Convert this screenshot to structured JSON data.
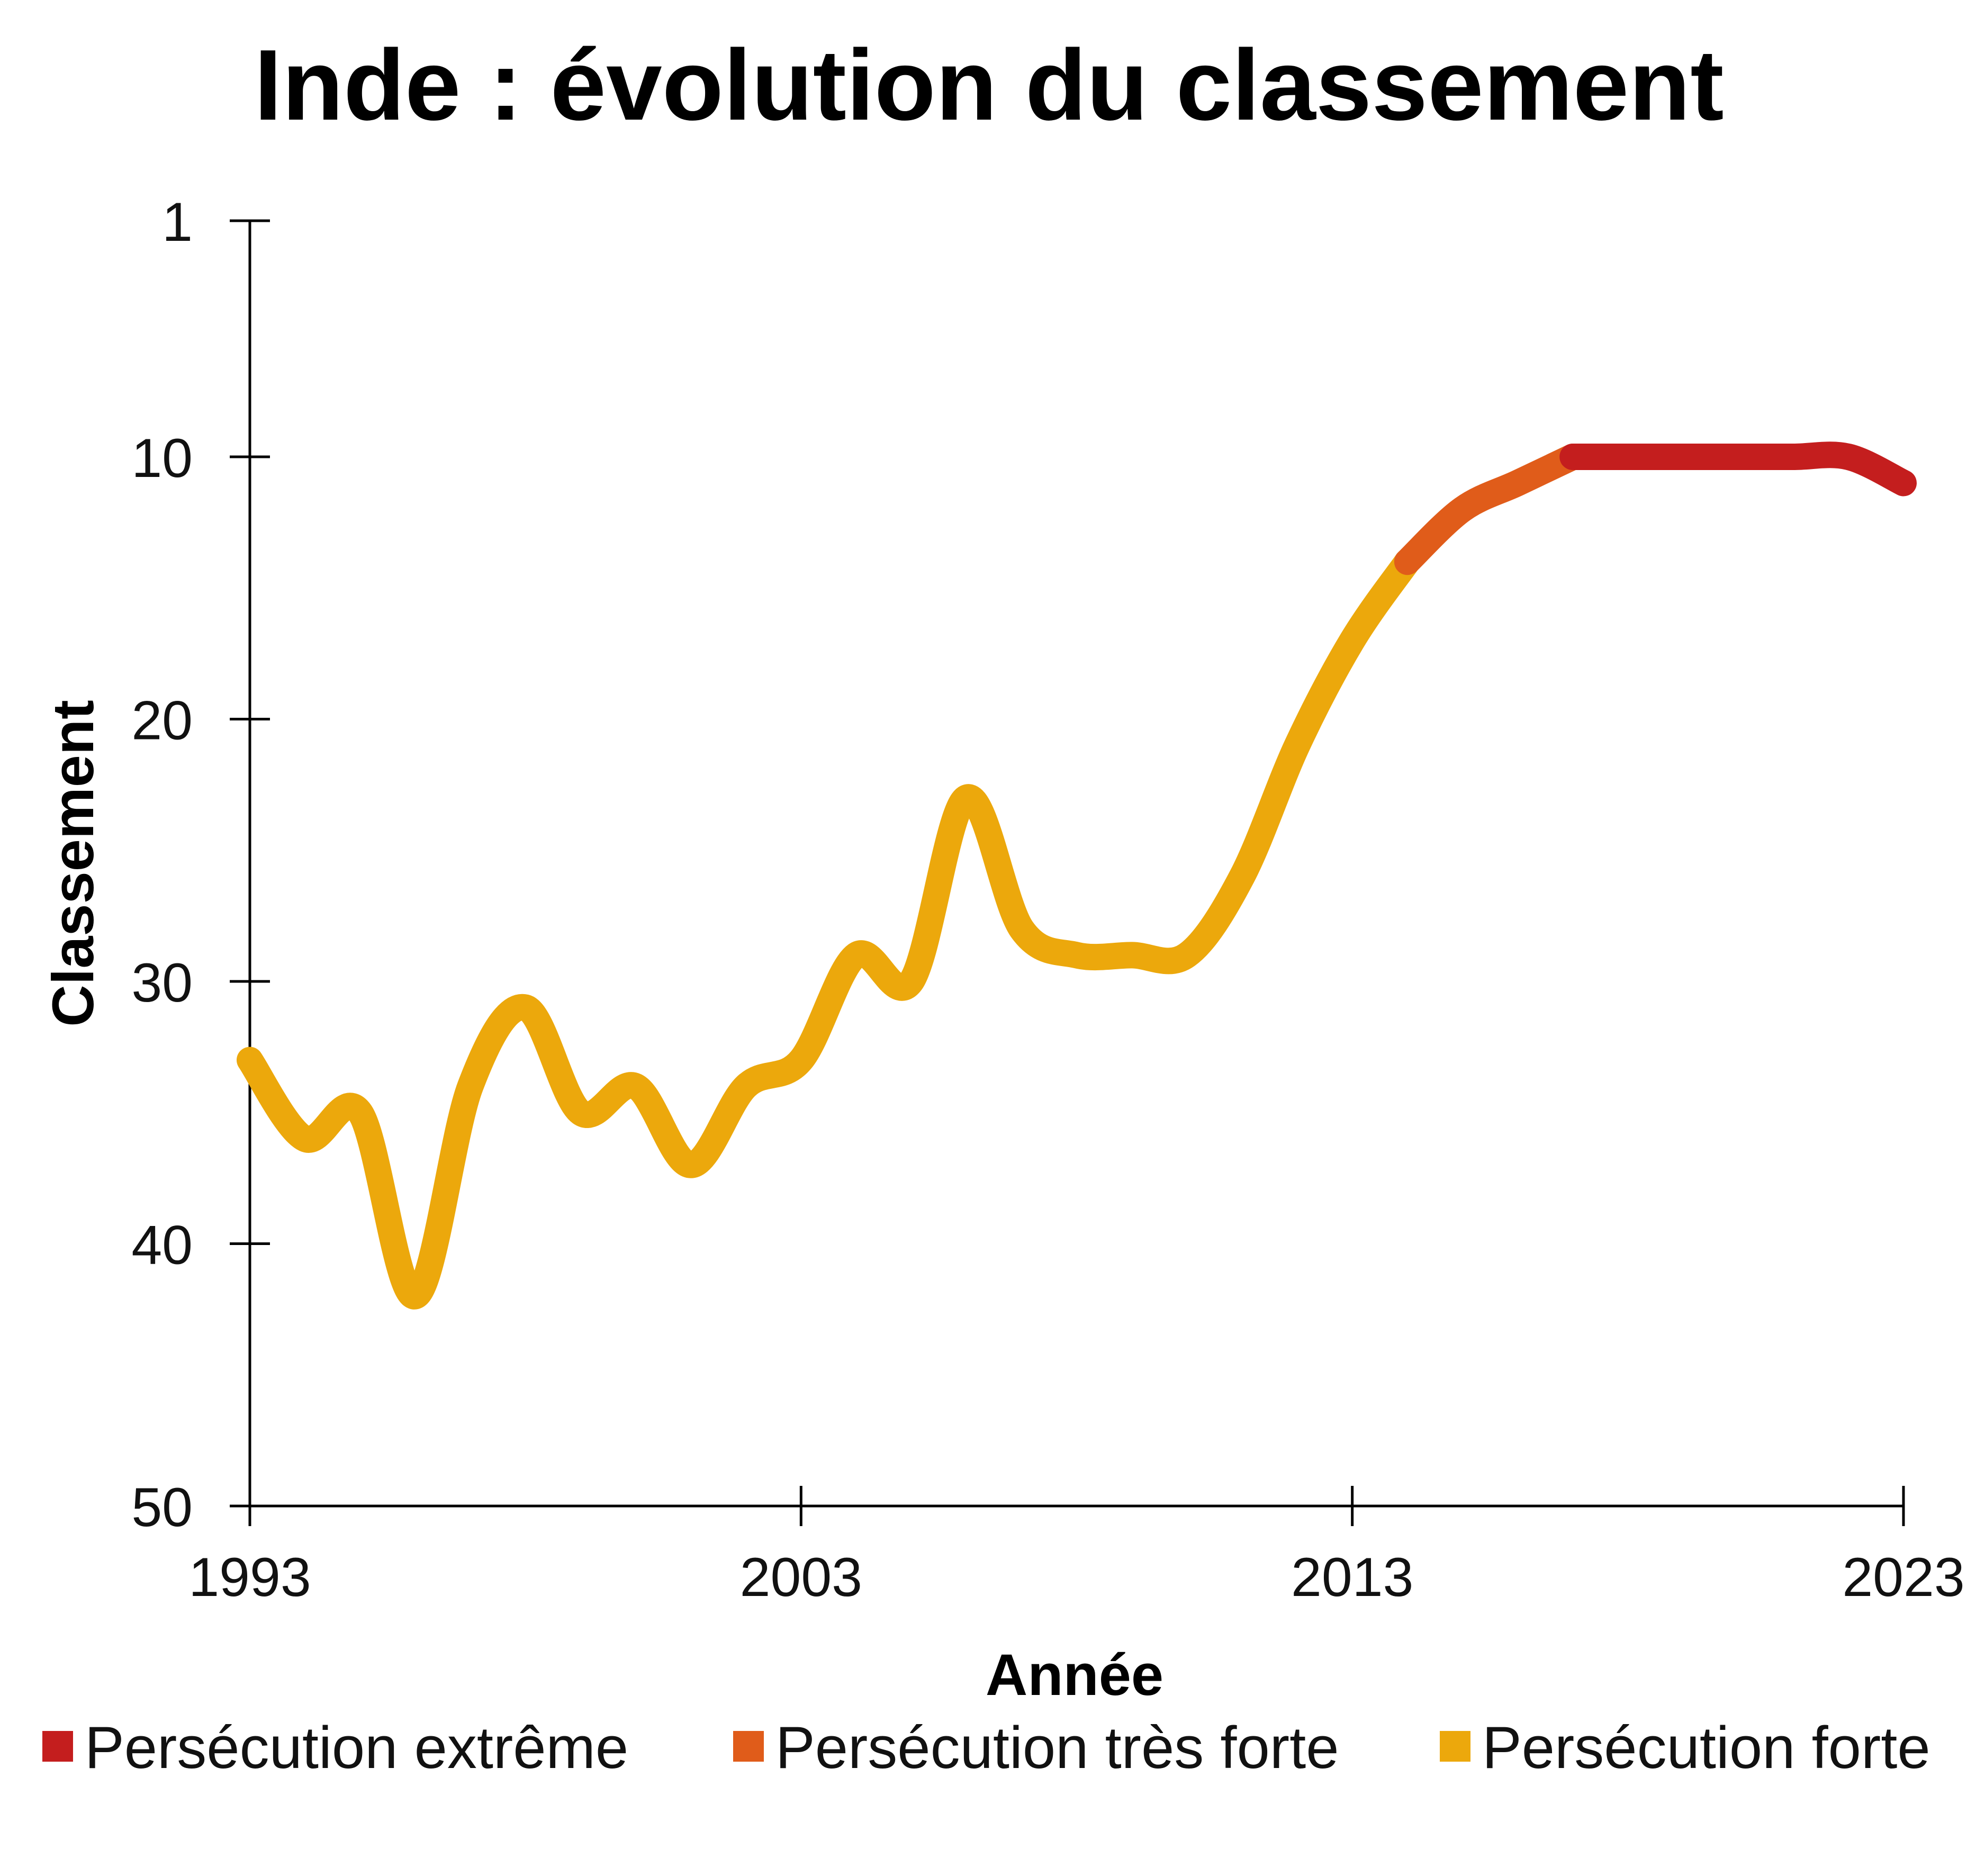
{
  "chart_data": {
    "type": "line",
    "title": "Inde : évolution du classement",
    "xlabel": "Année",
    "ylabel": "Classement",
    "xlim": [
      1993,
      2023
    ],
    "ylim": [
      1,
      50
    ],
    "y_inverted": true,
    "x_ticks": [
      "1993",
      "2003",
      "2013",
      "2023"
    ],
    "y_ticks": [
      "1",
      "10",
      "20",
      "30",
      "40",
      "50"
    ],
    "grid": false,
    "legend_position": "bottom",
    "x": [
      1993,
      1994,
      1995,
      1996,
      1997,
      1998,
      1999,
      2000,
      2001,
      2002,
      2003,
      2004,
      2005,
      2006,
      2007,
      2008,
      2009,
      2010,
      2011,
      2012,
      2013,
      2014,
      2015,
      2016,
      2017,
      2018,
      2019,
      2020,
      2021,
      2022,
      2023
    ],
    "values": [
      33,
      36,
      35,
      42,
      34,
      31,
      35,
      34,
      37,
      34,
      33,
      29,
      30,
      23,
      28,
      29,
      29,
      29,
      26,
      21,
      17,
      14,
      12,
      11,
      10,
      10,
      10,
      10,
      10,
      10,
      11
    ],
    "series": [
      {
        "name": "Persécution extrême",
        "color": "#c41e1e",
        "x_range": [
          2017,
          2023
        ]
      },
      {
        "name": "Persécution très forte",
        "color": "#e05c1a",
        "x_range": [
          2014,
          2017
        ]
      },
      {
        "name": "Persécution forte",
        "color": "#eca80c",
        "x_range": [
          1993,
          2014
        ]
      }
    ]
  }
}
